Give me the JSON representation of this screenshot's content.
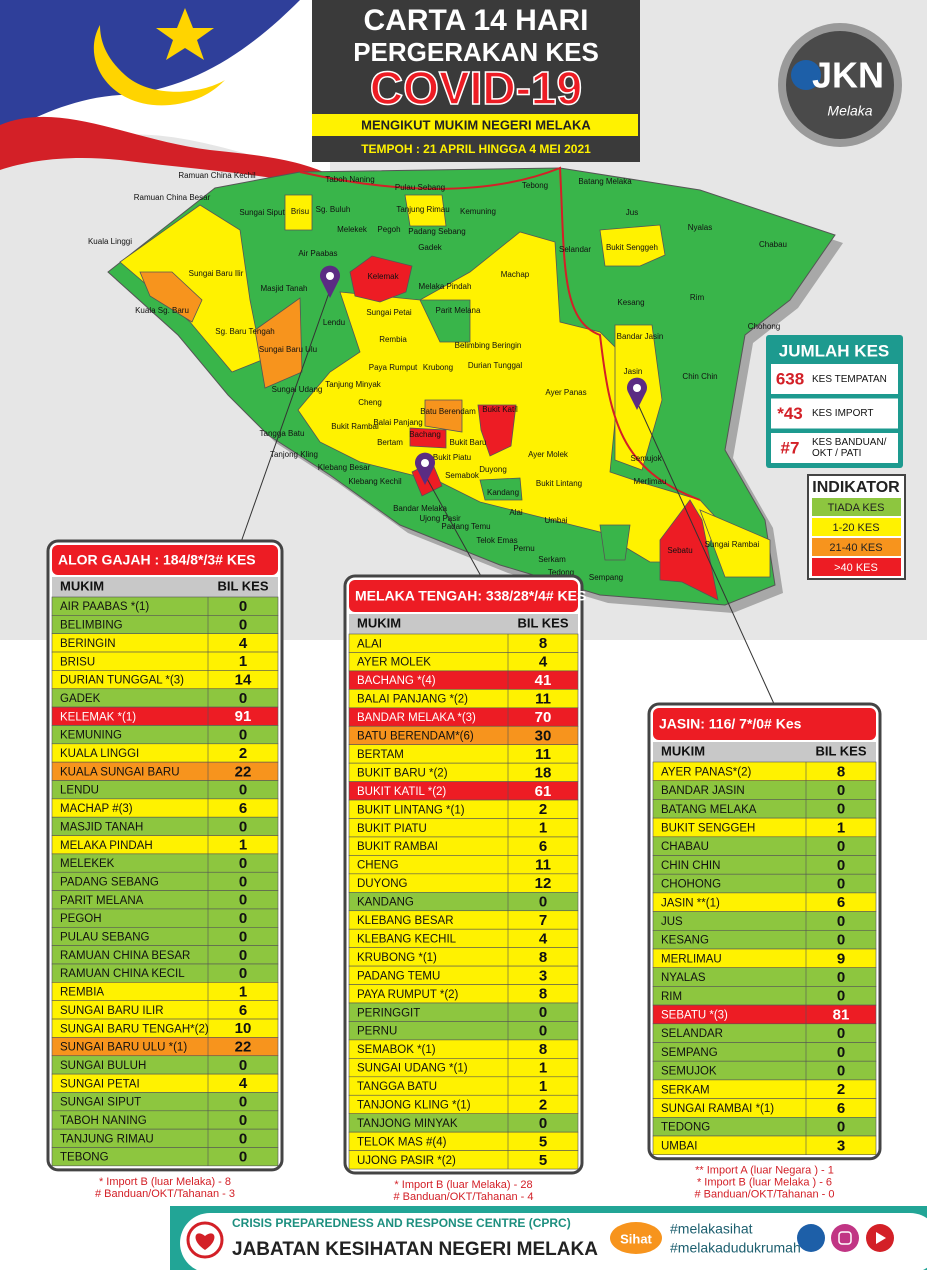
{
  "header": {
    "line1": "CARTA 14 HARI",
    "line2": "PERGERAKAN KES",
    "line3": "COVID-19",
    "subtitle": "MENGIKUT MUKIM NEGERI MELAKA",
    "period": "TEMPOH : 21 APRIL HINGGA 4 MEI 2021"
  },
  "logo": {
    "text": "JKN",
    "script": "Melaka"
  },
  "summary": {
    "title": "JUMLAH KES",
    "items": [
      {
        "value": "638",
        "label": "KES TEMPATAN"
      },
      {
        "value": "*43",
        "label": "KES IMPORT"
      },
      {
        "value": "#7",
        "label": "KES BANDUAN/ OKT / PATI"
      }
    ]
  },
  "indicator": {
    "title": "INDIKATOR",
    "items": [
      {
        "label": "TIADA KES",
        "color": "#8dc63f"
      },
      {
        "label": "1-20  KES",
        "color": "#fff200"
      },
      {
        "label": "21-40  KES",
        "color": "#f7941d"
      },
      {
        "label": ">40   KES",
        "color": "#ed1c24"
      }
    ]
  },
  "map": {
    "labels": [
      "Ramuan China Kechil",
      "Ramuan China Besar",
      "Taboh Naning",
      "Pulau Sebang",
      "Tebong",
      "Batang Melaka",
      "Sungai Siput",
      "Brisu",
      "Sg. Buluh",
      "Tanjung Rimau",
      "Kemuning",
      "Jus",
      "Nyalas",
      "Melekek",
      "Pegoh",
      "Padang Sebang",
      "Kuala Linggi",
      "Gadek",
      "Selandar",
      "Bukit Senggeh",
      "Chabau",
      "Air Paabas",
      "Kelemak",
      "Machap",
      "Sungai Baru Ilir",
      "Masjid Tanah",
      "Melaka Pindah",
      "Kesang",
      "Rim",
      "Kuala Sg. Baru",
      "Lendu",
      "Sungai Petai",
      "Parit Melana",
      "Sg. Baru Tengah",
      "Sungai Baru Ulu",
      "Rembia",
      "Belimbing Beringin",
      "Bandar Jasin",
      "Chohong",
      "Durian Tunggal",
      "Paya Rumput",
      "Krubong",
      "Jasin",
      "Chin Chin",
      "Sungai Udang",
      "Tanjung Minyak",
      "Ayer Panas",
      "Cheng",
      "Batu Berendam",
      "Bukit Katil",
      "Balai Panjang",
      "Bukit Rambai",
      "Tangga Batu",
      "Bachang",
      "Bertam",
      "Bukit Baru",
      "Tanjong Kling",
      "Bukit Piatu",
      "Ayer Molek",
      "Semujok",
      "Klebang Besar",
      "Duyong",
      "Klebang Kechil",
      "Semabok",
      "Bukit Lintang",
      "Kandang",
      "Merlimau",
      "Bandar Melaka",
      "Ujong Pasir",
      "Alai",
      "Padang Temu",
      "Umbai",
      "Telok Emas",
      "Pernu",
      "Sebatu",
      "Sungai Rambai",
      "Serkam",
      "Tedong",
      "Sempang"
    ]
  },
  "tables": [
    {
      "title": "ALOR GAJAH : 184/8*/3# KES",
      "columns": [
        "MUKIM",
        "BIL KES"
      ],
      "rows": [
        [
          "AIR PAABAS *(1)",
          0,
          "#8dc63f"
        ],
        [
          "BELIMBING",
          0,
          "#8dc63f"
        ],
        [
          "BERINGIN",
          4,
          "#fff200"
        ],
        [
          "BRISU",
          1,
          "#fff200"
        ],
        [
          "DURIAN TUNGGAL *(3)",
          14,
          "#fff200"
        ],
        [
          "GADEK",
          0,
          "#8dc63f"
        ],
        [
          "KELEMAK *(1)",
          91,
          "#ed1c24"
        ],
        [
          "KEMUNING",
          0,
          "#8dc63f"
        ],
        [
          "KUALA LINGGI",
          2,
          "#fff200"
        ],
        [
          "KUALA SUNGAI BARU",
          22,
          "#f7941d"
        ],
        [
          "LENDU",
          0,
          "#8dc63f"
        ],
        [
          "MACHAP #(3)",
          6,
          "#fff200"
        ],
        [
          "MASJID TANAH",
          0,
          "#8dc63f"
        ],
        [
          "MELAKA PINDAH",
          1,
          "#fff200"
        ],
        [
          "MELEKEK",
          0,
          "#8dc63f"
        ],
        [
          "PADANG SEBANG",
          0,
          "#8dc63f"
        ],
        [
          "PARIT MELANA",
          0,
          "#8dc63f"
        ],
        [
          "PEGOH",
          0,
          "#8dc63f"
        ],
        [
          "PULAU SEBANG",
          0,
          "#8dc63f"
        ],
        [
          "RAMUAN CHINA BESAR",
          0,
          "#8dc63f"
        ],
        [
          "RAMUAN CHINA KECIL",
          0,
          "#8dc63f"
        ],
        [
          "REMBIA",
          1,
          "#fff200"
        ],
        [
          "SUNGAI BARU ILIR",
          6,
          "#fff200"
        ],
        [
          "SUNGAI BARU TENGAH*(2)",
          10,
          "#fff200"
        ],
        [
          "SUNGAI BARU ULU *(1)",
          22,
          "#f7941d"
        ],
        [
          "SUNGAI BULUH",
          0,
          "#8dc63f"
        ],
        [
          "SUNGAI PETAI",
          4,
          "#fff200"
        ],
        [
          "SUNGAI SIPUT",
          0,
          "#8dc63f"
        ],
        [
          "TABOH NANING",
          0,
          "#8dc63f"
        ],
        [
          "TANJUNG  RIMAU",
          0,
          "#8dc63f"
        ],
        [
          "TEBONG",
          0,
          "#8dc63f"
        ]
      ],
      "notes": [
        "* Import B (luar Melaka) - 8",
        "# Banduan/OKT/Tahanan  - 3"
      ]
    },
    {
      "title": "MELAKA TENGAH: 338/28*/4# KES",
      "columns": [
        "MUKIM",
        "BIL KES"
      ],
      "rows": [
        [
          "ALAI",
          8,
          "#fff200"
        ],
        [
          "AYER MOLEK",
          4,
          "#fff200"
        ],
        [
          "BACHANG *(4)",
          41,
          "#ed1c24"
        ],
        [
          "BALAI PANJANG *(2)",
          11,
          "#fff200"
        ],
        [
          "BANDAR MELAKA *(3)",
          70,
          "#ed1c24"
        ],
        [
          "BATU BERENDAM*(6)",
          30,
          "#f7941d"
        ],
        [
          "BERTAM",
          11,
          "#fff200"
        ],
        [
          "BUKIT BARU *(2)",
          18,
          "#fff200"
        ],
        [
          "BUKIT KATIL *(2)",
          61,
          "#ed1c24"
        ],
        [
          "BUKIT LINTANG *(1)",
          2,
          "#fff200"
        ],
        [
          "BUKIT PIATU",
          1,
          "#fff200"
        ],
        [
          "BUKIT RAMBAI",
          6,
          "#fff200"
        ],
        [
          "CHENG",
          11,
          "#fff200"
        ],
        [
          "DUYONG",
          12,
          "#fff200"
        ],
        [
          "KANDANG",
          0,
          "#8dc63f"
        ],
        [
          "KLEBANG  BESAR",
          7,
          "#fff200"
        ],
        [
          "KLEBANG  KECHIL",
          4,
          "#fff200"
        ],
        [
          "KRUBONG *(1)",
          8,
          "#fff200"
        ],
        [
          "PADANG TEMU",
          3,
          "#fff200"
        ],
        [
          "PAYA RUMPUT *(2)",
          8,
          "#fff200"
        ],
        [
          "PERINGGIT",
          0,
          "#8dc63f"
        ],
        [
          "PERNU",
          0,
          "#8dc63f"
        ],
        [
          "SEMABOK *(1)",
          8,
          "#fff200"
        ],
        [
          "SUNGAI UDANG *(1)",
          1,
          "#fff200"
        ],
        [
          "TANGGA BATU",
          1,
          "#fff200"
        ],
        [
          "TANJONG KLING *(1)",
          2,
          "#fff200"
        ],
        [
          "TANJONG MINYAK",
          0,
          "#8dc63f"
        ],
        [
          "TELOK MAS #(4)",
          5,
          "#fff200"
        ],
        [
          "UJONG PASIR *(2)",
          5,
          "#fff200"
        ]
      ],
      "notes": [
        "* Import B (luar Melaka) - 28",
        "# Banduan/OKT/Tahanan - 4"
      ]
    },
    {
      "title": "JASIN:  116/ 7*/0# Kes",
      "columns": [
        "MUKIM",
        "BIL KES"
      ],
      "rows": [
        [
          "AYER PANAS*(2)",
          8,
          "#fff200"
        ],
        [
          "BANDAR JASIN",
          0,
          "#8dc63f"
        ],
        [
          "BATANG MELAKA",
          0,
          "#8dc63f"
        ],
        [
          "BUKIT  SENGGEH",
          1,
          "#fff200"
        ],
        [
          "CHABAU",
          0,
          "#8dc63f"
        ],
        [
          "CHIN CHIN",
          0,
          "#8dc63f"
        ],
        [
          "CHOHONG",
          0,
          "#8dc63f"
        ],
        [
          "JASIN **(1)",
          6,
          "#fff200"
        ],
        [
          "JUS",
          0,
          "#8dc63f"
        ],
        [
          "KESANG",
          0,
          "#8dc63f"
        ],
        [
          "MERLIMAU",
          9,
          "#fff200"
        ],
        [
          "NYALAS",
          0,
          "#8dc63f"
        ],
        [
          "RIM",
          0,
          "#8dc63f"
        ],
        [
          "SEBATU *(3)",
          81,
          "#ed1c24"
        ],
        [
          "SELANDAR",
          0,
          "#8dc63f"
        ],
        [
          "SEMPANG",
          0,
          "#8dc63f"
        ],
        [
          "SEMUJOK",
          0,
          "#8dc63f"
        ],
        [
          "SERKAM",
          2,
          "#fff200"
        ],
        [
          "SUNGAI RAMBAI *(1)",
          6,
          "#fff200"
        ],
        [
          "TEDONG",
          0,
          "#8dc63f"
        ],
        [
          "UMBAI",
          3,
          "#fff200"
        ]
      ],
      "notes": [
        "** Import A (luar Negara ) - 1",
        "* Import B (luar Melaka ) - 6",
        "# Banduan/OKT/Tahanan - 0"
      ]
    }
  ],
  "footer": {
    "org": "CRISIS PREPAREDNESS AND RESPONSE CENTRE (CPRC)",
    "dept": "JABATAN KESIHATAN NEGERI MELAKA",
    "badge": "Sihat",
    "hashtag1": "#melakasihat",
    "hashtag2": "#melakadudukrumah"
  }
}
